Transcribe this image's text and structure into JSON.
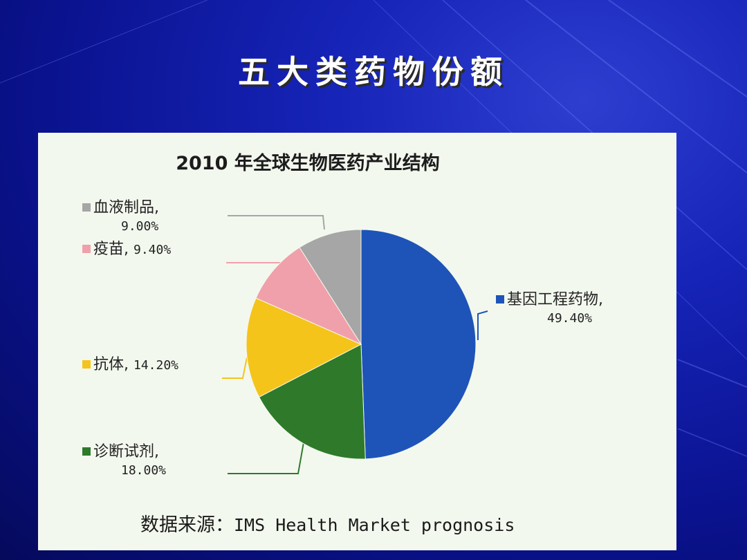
{
  "slide": {
    "title": "五大类药物份额"
  },
  "chart_data": {
    "type": "pie",
    "title": "2010 年全球生物医药产业结构",
    "categories": [
      "基因工程药物",
      "诊断试剂",
      "抗体",
      "疫苗",
      "血液制品"
    ],
    "values": [
      49.4,
      18.0,
      14.2,
      9.4,
      9.0
    ],
    "value_labels": [
      "49.40%",
      "18.00%",
      "14.20%",
      "9.40%",
      "9.00%"
    ],
    "colors": [
      "#1e54b8",
      "#2e7a2a",
      "#f5c41a",
      "#f0a0aa",
      "#a6a6a6"
    ],
    "start": "12 o'clock, clockwise",
    "source_prefix": "数据来源：",
    "source_text": "IMS Health Market prognosis"
  },
  "labels": {
    "blood": {
      "name": "血液制品,",
      "pct": "9.00%"
    },
    "vaccine": {
      "name": "疫苗,",
      "pct": "9.40%"
    },
    "antibody": {
      "name": "抗体,",
      "pct": "14.20%"
    },
    "diagnostic": {
      "name": "诊断试剂,",
      "pct": "18.00%"
    },
    "gene": {
      "name": "基因工程药物,",
      "pct": "49.40%"
    }
  }
}
